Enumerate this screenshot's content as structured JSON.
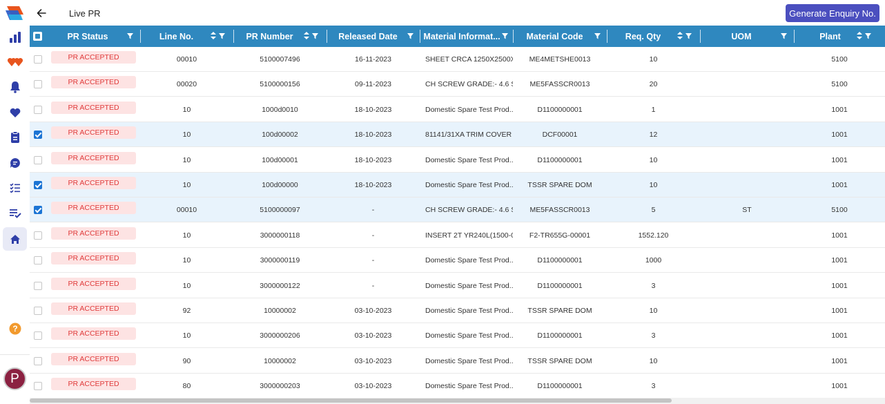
{
  "page": {
    "title": "Live PR",
    "primary_action": "Generate Enquiry No."
  },
  "colors": {
    "header_bg": "#2f88bf",
    "button_bg": "#4b4fbf",
    "badge_bg": "#fde3e3",
    "badge_text": "#e03a3a",
    "selected_row": "#e8f3fc"
  },
  "sidebar": {
    "icons": [
      "bar-chart-icon",
      "hearts-icon",
      "bell-icon",
      "heart-icon",
      "document-list-icon",
      "chat-bubble-icon",
      "checklist-icon",
      "task-check-icon",
      "home-icon",
      "help-icon"
    ],
    "active": "home-icon",
    "avatar_initial": "P"
  },
  "table": {
    "columns": [
      "PR Status",
      "Line No.",
      "PR Number",
      "Released Date",
      "Material Informat...",
      "Material Code",
      "Req. Qty",
      "UOM",
      "Plant"
    ],
    "rows": [
      {
        "selected": false,
        "status": "PR ACCEPTED",
        "line": "00010",
        "pr": "5100007496",
        "date": "16-11-2023",
        "material": "SHEET CRCA 1250X2500X...",
        "code": "ME4METSHE0013",
        "qty": "10",
        "uom": "",
        "plant": "5100"
      },
      {
        "selected": false,
        "status": "PR ACCEPTED",
        "line": "00020",
        "pr": "5100000156",
        "date": "09-11-2023",
        "material": "CH SCREW GRADE:- 4.6 SI...",
        "code": "ME5FASSCR0013",
        "qty": "20",
        "uom": "",
        "plant": "5100"
      },
      {
        "selected": false,
        "status": "PR ACCEPTED",
        "line": "10",
        "pr": "1000d0010",
        "date": "18-10-2023",
        "material": "Domestic Spare Test Prod...",
        "code": "D1100000001",
        "qty": "1",
        "uom": "",
        "plant": "1001"
      },
      {
        "selected": true,
        "status": "PR ACCEPTED",
        "line": "10",
        "pr": "100d00002",
        "date": "18-10-2023",
        "material": "81141/31XA TRIM COVER",
        "code": "DCF00001",
        "qty": "12",
        "uom": "",
        "plant": "1001"
      },
      {
        "selected": false,
        "status": "PR ACCEPTED",
        "line": "10",
        "pr": "100d00001",
        "date": "18-10-2023",
        "material": "Domestic Spare Test Prod...",
        "code": "D1100000001",
        "qty": "10",
        "uom": "",
        "plant": "1001"
      },
      {
        "selected": true,
        "status": "PR ACCEPTED",
        "line": "10",
        "pr": "100d00000",
        "date": "18-10-2023",
        "material": "Domestic Spare Test Prod...",
        "code": "TSSR SPARE DOM",
        "qty": "10",
        "uom": "",
        "plant": "1001"
      },
      {
        "selected": true,
        "status": "PR ACCEPTED",
        "line": "00010",
        "pr": "5100000097",
        "date": "-",
        "material": "CH SCREW GRADE:- 4.6 SI...",
        "code": "ME5FASSCR0013",
        "qty": "5",
        "uom": "ST",
        "plant": "5100"
      },
      {
        "selected": false,
        "status": "PR ACCEPTED",
        "line": "10",
        "pr": "3000000118",
        "date": "-",
        "material": "INSERT 2T YR240L(1500-0...",
        "code": "F2-TR655G-00001",
        "qty": "1552.120",
        "uom": "",
        "plant": "1001"
      },
      {
        "selected": false,
        "status": "PR ACCEPTED",
        "line": "10",
        "pr": "3000000119",
        "date": "-",
        "material": "Domestic Spare Test Prod...",
        "code": "D1100000001",
        "qty": "1000",
        "uom": "",
        "plant": "1001"
      },
      {
        "selected": false,
        "status": "PR ACCEPTED",
        "line": "10",
        "pr": "3000000122",
        "date": "-",
        "material": "Domestic Spare Test Prod...",
        "code": "D1100000001",
        "qty": "3",
        "uom": "",
        "plant": "1001"
      },
      {
        "selected": false,
        "status": "PR ACCEPTED",
        "line": "92",
        "pr": "10000002",
        "date": "03-10-2023",
        "material": "Domestic Spare Test Prod...",
        "code": "TSSR SPARE DOM",
        "qty": "10",
        "uom": "",
        "plant": "1001"
      },
      {
        "selected": false,
        "status": "PR ACCEPTED",
        "line": "10",
        "pr": "3000000206",
        "date": "03-10-2023",
        "material": "Domestic Spare Test Prod...",
        "code": "D1100000001",
        "qty": "3",
        "uom": "",
        "plant": "1001"
      },
      {
        "selected": false,
        "status": "PR ACCEPTED",
        "line": "90",
        "pr": "10000002",
        "date": "03-10-2023",
        "material": "Domestic Spare Test Prod...",
        "code": "TSSR SPARE DOM",
        "qty": "10",
        "uom": "",
        "plant": "1001"
      },
      {
        "selected": false,
        "status": "PR ACCEPTED",
        "line": "80",
        "pr": "3000000203",
        "date": "03-10-2023",
        "material": "Domestic Spare Test Prod...",
        "code": "D1100000001",
        "qty": "3",
        "uom": "",
        "plant": "1001"
      }
    ]
  }
}
